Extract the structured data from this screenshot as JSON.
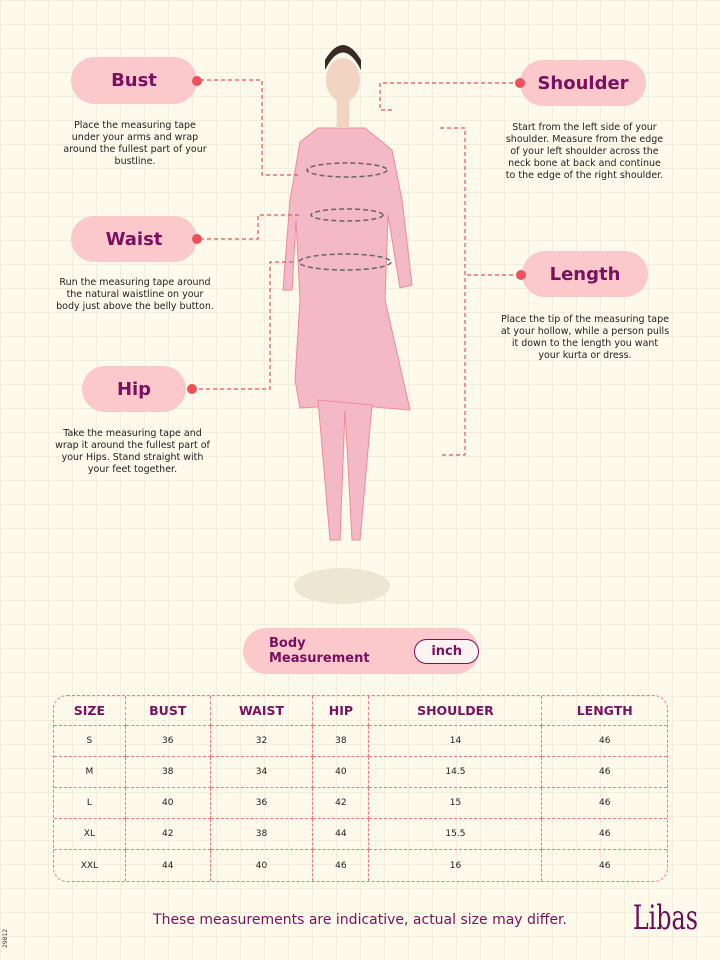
{
  "labels": {
    "bust": {
      "title": "Bust",
      "desc": "Place the measuring tape under your arms and wrap around the fullest part of your bustline."
    },
    "waist": {
      "title": "Waist",
      "desc": "Run the measuring tape around the natural waistline on your body just above the belly button."
    },
    "hip": {
      "title": "Hip",
      "desc": "Take the measuring tape and wrap it around the fullest part of your Hips. Stand straight with your feet together."
    },
    "shoulder": {
      "title": "Shoulder",
      "desc": "Start from the left side of your shoulder. Measure from the edge of your left shoulder across the neck bone at back and continue to the edge of the right shoulder."
    },
    "length": {
      "title": "Length",
      "desc": "Place the tip of the measuring tape at your hollow, while a person pulls it down to the length you want your kurta or dress."
    }
  },
  "measurement": {
    "title": "Body Measurement",
    "unit": "inch"
  },
  "table": {
    "headers": [
      "SIZE",
      "BUST",
      "WAIST",
      "HIP",
      "SHOULDER",
      "LENGTH"
    ],
    "rows": [
      [
        "S",
        "36",
        "32",
        "38",
        "14",
        "46"
      ],
      [
        "M",
        "38",
        "34",
        "40",
        "14.5",
        "46"
      ],
      [
        "L",
        "40",
        "36",
        "42",
        "15",
        "46"
      ],
      [
        "XL",
        "42",
        "38",
        "44",
        "15.5",
        "46"
      ],
      [
        "XXL",
        "44",
        "40",
        "46",
        "16",
        "46"
      ]
    ]
  },
  "disclaimer": "These measurements are indicative, actual size may differ.",
  "brand": "Libas",
  "code": "29812",
  "colors": {
    "accent": "#7a1060",
    "pill": "#fbc9cc",
    "dash": "#f07a80"
  }
}
